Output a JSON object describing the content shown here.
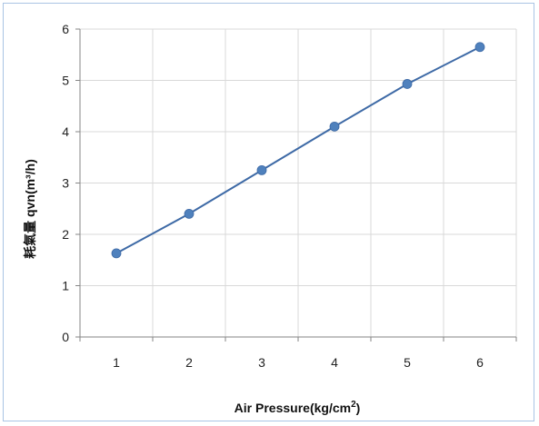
{
  "chart_data": {
    "type": "line",
    "x": [
      1,
      2,
      3,
      4,
      5,
      6
    ],
    "series": [
      {
        "values": [
          1.63,
          2.4,
          3.25,
          4.1,
          4.93,
          5.65
        ]
      }
    ],
    "xlabel": "Air Pressure(kg/cm",
    "xlabel_superscript": "2",
    "xlabel_suffix": ")",
    "ylabel": "耗氣量 qvn(m³/h)",
    "xlim": [
      0.5,
      6.5
    ],
    "ylim": [
      0,
      6
    ],
    "yticks": [
      "0",
      "1",
      "2",
      "3",
      "4",
      "5",
      "6"
    ],
    "xticks": [
      "1",
      "2",
      "3",
      "4",
      "5",
      "6"
    ],
    "grid": true,
    "legend": "none",
    "colors": {
      "line": "#3e6aa6",
      "marker": "#4f81bd",
      "grid": "#d9d9d9",
      "axis": "#868686",
      "border": "#a9c4e4"
    }
  }
}
